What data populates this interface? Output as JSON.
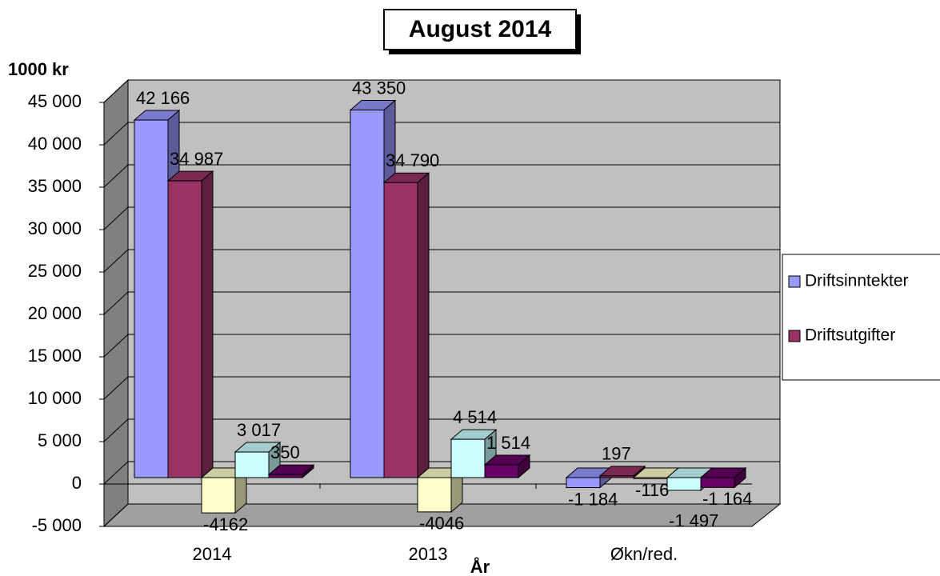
{
  "chart_data": {
    "type": "bar3d",
    "title": "August 2014",
    "y_axis_label": "1000 kr",
    "x_axis_label": "År",
    "categories": [
      "2014",
      "2013",
      "Økn/red."
    ],
    "series": [
      {
        "name": "Driftsinntekter",
        "color": "#9999ff",
        "values": [
          42166,
          43350,
          -1184
        ],
        "value_labels": [
          "42 166",
          "43 350",
          "-1 184"
        ]
      },
      {
        "name": "Driftsutgifter",
        "color": "#993366",
        "values": [
          34987,
          34790,
          197
        ],
        "value_labels": [
          "34 987",
          "34 790",
          "197"
        ]
      },
      {
        "color": "#ffffcc",
        "values": [
          -4162,
          -4046,
          -116
        ],
        "value_labels": [
          "-4162",
          "-4046",
          "-116"
        ]
      },
      {
        "color": "#ccffff",
        "values": [
          3017,
          4514,
          -1497
        ],
        "value_labels": [
          "3 017",
          "4 514",
          "-1 497"
        ]
      },
      {
        "color": "#660066",
        "values": [
          350,
          1514,
          -1164
        ],
        "value_labels": [
          "350",
          "1 514",
          "-1 164"
        ]
      }
    ],
    "ylim": [
      -5000,
      45000
    ],
    "yticks": [
      {
        "value": -5000,
        "label": "-5 000"
      },
      0,
      {
        "value": 5000,
        "label": "5 000"
      },
      {
        "value": 10000,
        "label": "10 000"
      },
      {
        "value": 15000,
        "label": "15 000"
      },
      {
        "value": 20000,
        "label": "20 000"
      },
      {
        "value": 25000,
        "label": "25 000"
      },
      {
        "value": 30000,
        "label": "30 000"
      },
      {
        "value": 35000,
        "label": "35 000"
      },
      {
        "value": 40000,
        "label": "40 000"
      },
      {
        "value": 45000,
        "label": "45 000"
      }
    ],
    "grid": true,
    "legend": "right"
  }
}
